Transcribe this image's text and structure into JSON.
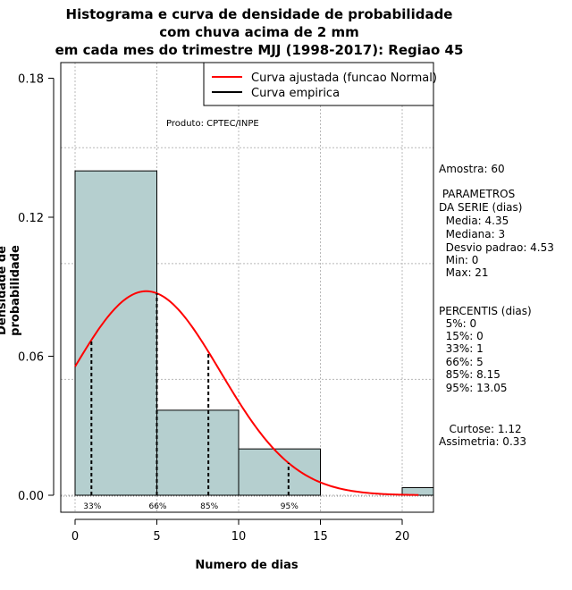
{
  "title_lines": [
    "Histograma e curva de densidade de probabilidade",
    "com chuva acima de 2 mm",
    "em cada mes do trimestre MJJ (1998-2017): Regiao 45"
  ],
  "product_note": "Produto: CPTEC/INPE",
  "chart_data": {
    "type": "bar",
    "title": "Histograma e curva de densidade de probabilidade com chuva acima de 2 mm em cada mes do trimestre MJJ (1998-2017): Regiao 45",
    "xlabel": "Numero de dias",
    "ylabel": "Densidade de probabilidade",
    "xlim": [
      0,
      22
    ],
    "ylim": [
      0,
      0.18
    ],
    "x_ticks": [
      0,
      5,
      10,
      15,
      20
    ],
    "y_ticks": [
      0.0,
      0.06,
      0.12,
      0.18
    ],
    "y_tick_labels": [
      "0.00",
      "0.06",
      "0.12",
      "0.18"
    ],
    "grid": true,
    "bins": [
      {
        "from": 0,
        "to": 5,
        "density": 0.14
      },
      {
        "from": 5,
        "to": 10,
        "density": 0.0367
      },
      {
        "from": 10,
        "to": 15,
        "density": 0.02
      },
      {
        "from": 15,
        "to": 20,
        "density": 0.0
      },
      {
        "from": 20,
        "to": 25,
        "density": 0.0033
      }
    ],
    "bar_color": "#b5cfcf",
    "normal_curve": {
      "name": "Curva ajustada (funcao Normal)",
      "mean": 4.35,
      "sd": 4.53,
      "x_from": 0,
      "x_to": 21,
      "color": "#ff0000"
    },
    "empirical_curve": {
      "name": "Curva empirica",
      "color": "#000000"
    },
    "legend_position": "top-right",
    "percentile_markers": [
      {
        "label": "33%",
        "x": 1
      },
      {
        "label": "66%",
        "x": 5
      },
      {
        "label": "85%",
        "x": 8.15
      },
      {
        "label": "95%",
        "x": 13.05
      }
    ]
  },
  "stats": {
    "sample": "Amostra: 60",
    "params_header": [
      " PARAMETROS",
      "DA SERIE (dias)"
    ],
    "params": [
      "  Media: 4.35",
      "  Mediana: 3",
      "  Desvio padrao: 4.53",
      "  Min: 0",
      "  Max: 21"
    ],
    "percentis_header": "PERCENTIS (dias)",
    "percentis": [
      "  5%: 0",
      "  15%: 0",
      "  33%: 1",
      "  66%: 5",
      "  85%: 8.15",
      "  95%: 13.05"
    ],
    "moments": [
      "   Curtose: 1.12",
      "Assimetria: 0.33"
    ]
  }
}
